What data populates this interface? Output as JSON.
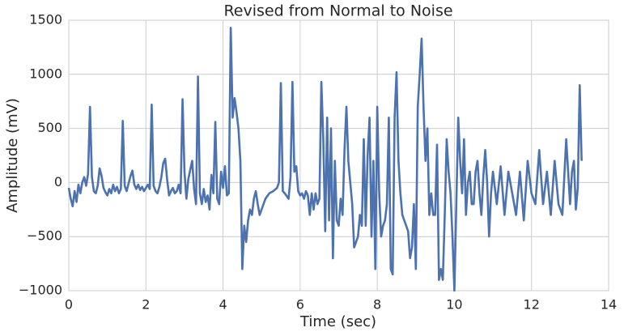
{
  "chart_data": {
    "type": "line",
    "title": "Revised from Normal to Noise",
    "x_label": "Time (sec)",
    "y_label": "Amplitude (mV)",
    "xlim": [
      0,
      14
    ],
    "ylim": [
      -1000,
      1500
    ],
    "xticks": [
      0,
      2,
      4,
      6,
      8,
      10,
      12,
      14
    ],
    "yticks": [
      {
        "value": -1000,
        "label": "−1000"
      },
      {
        "value": -500,
        "label": "−500"
      },
      0,
      500,
      1000,
      1500
    ],
    "grid": true,
    "series": [
      {
        "color": "#4c72b0",
        "x": [
          0,
          0.05,
          0.1,
          0.15,
          0.2,
          0.25,
          0.3,
          0.35,
          0.4,
          0.45,
          0.5,
          0.55,
          0.6,
          0.65,
          0.7,
          0.75,
          0.8,
          0.85,
          0.9,
          0.95,
          1,
          1.05,
          1.1,
          1.15,
          1.2,
          1.25,
          1.3,
          1.35,
          1.4,
          1.45,
          1.5,
          1.55,
          1.6,
          1.65,
          1.7,
          1.75,
          1.8,
          1.85,
          1.9,
          1.95,
          2,
          2.05,
          2.1,
          2.15,
          2.2,
          2.25,
          2.3,
          2.35,
          2.4,
          2.45,
          2.5,
          2.55,
          2.6,
          2.65,
          2.7,
          2.75,
          2.8,
          2.85,
          2.9,
          2.95,
          3,
          3.05,
          3.1,
          3.15,
          3.2,
          3.25,
          3.3,
          3.35,
          3.4,
          3.45,
          3.5,
          3.55,
          3.6,
          3.65,
          3.7,
          3.75,
          3.8,
          3.85,
          3.9,
          3.95,
          4,
          4.05,
          4.1,
          4.15,
          4.2,
          4.25,
          4.3,
          4.35,
          4.4,
          4.45,
          4.5,
          4.55,
          4.6,
          4.65,
          4.7,
          4.75,
          4.8,
          4.85,
          4.9,
          4.95,
          5,
          5.1,
          5.2,
          5.3,
          5.4,
          5.45,
          5.5,
          5.55,
          5.6,
          5.7,
          5.75,
          5.8,
          5.85,
          5.9,
          5.95,
          6,
          6.05,
          6.1,
          6.15,
          6.2,
          6.25,
          6.3,
          6.35,
          6.4,
          6.45,
          6.5,
          6.55,
          6.6,
          6.65,
          6.7,
          6.75,
          6.8,
          6.85,
          6.9,
          6.95,
          7,
          7.05,
          7.1,
          7.15,
          7.2,
          7.25,
          7.3,
          7.35,
          7.4,
          7.45,
          7.5,
          7.55,
          7.6,
          7.65,
          7.7,
          7.75,
          7.8,
          7.85,
          7.9,
          7.95,
          8,
          8.05,
          8.1,
          8.15,
          8.2,
          8.25,
          8.3,
          8.35,
          8.4,
          8.45,
          8.5,
          8.55,
          8.6,
          8.65,
          8.7,
          8.75,
          8.8,
          8.85,
          8.9,
          8.95,
          9,
          9.05,
          9.1,
          9.15,
          9.2,
          9.25,
          9.3,
          9.35,
          9.4,
          9.45,
          9.5,
          9.55,
          9.6,
          9.65,
          9.7,
          9.75,
          9.8,
          9.85,
          9.9,
          9.95,
          10,
          10.05,
          10.1,
          10.15,
          10.2,
          10.25,
          10.3,
          10.35,
          10.4,
          10.45,
          10.5,
          10.55,
          10.6,
          10.65,
          10.7,
          10.75,
          10.8,
          10.85,
          10.9,
          10.95,
          11,
          11.1,
          11.2,
          11.3,
          11.4,
          11.5,
          11.6,
          11.7,
          11.8,
          11.9,
          12,
          12.1,
          12.2,
          12.3,
          12.4,
          12.5,
          12.6,
          12.7,
          12.8,
          12.9,
          13,
          13.05,
          13.1,
          13.15,
          13.2,
          13.25,
          13.3
        ],
        "values": [
          -50,
          -150,
          -220,
          -80,
          -180,
          -20,
          -100,
          0,
          50,
          -30,
          80,
          700,
          50,
          -80,
          -100,
          -30,
          130,
          60,
          -50,
          -90,
          -120,
          -60,
          -100,
          -20,
          -80,
          -40,
          -100,
          -60,
          570,
          -30,
          -80,
          -10,
          60,
          110,
          -20,
          -60,
          -20,
          -70,
          -40,
          -80,
          -50,
          -20,
          -60,
          720,
          -30,
          -80,
          -100,
          -40,
          50,
          180,
          220,
          30,
          -120,
          -80,
          -50,
          -100,
          -80,
          -20,
          -100,
          770,
          100,
          -150,
          30,
          120,
          200,
          -60,
          -200,
          980,
          -100,
          -200,
          -60,
          -180,
          -120,
          -250,
          70,
          -100,
          560,
          -150,
          -200,
          100,
          -50,
          150,
          -120,
          -100,
          1430,
          600,
          780,
          650,
          500,
          200,
          -800,
          -400,
          -550,
          -350,
          -250,
          -300,
          -150,
          -80,
          -200,
          -300,
          -250,
          -150,
          -100,
          -80,
          -50,
          0,
          920,
          -80,
          -100,
          -150,
          50,
          930,
          100,
          150,
          -80,
          -120,
          -100,
          -150,
          -80,
          -120,
          -300,
          -100,
          -250,
          -100,
          -200,
          -150,
          930,
          400,
          -450,
          600,
          -350,
          500,
          -700,
          200,
          -350,
          -400,
          -150,
          -300,
          300,
          700,
          200,
          0,
          -200,
          -600,
          -550,
          -500,
          -300,
          -400,
          400,
          -400,
          250,
          600,
          -500,
          200,
          -800,
          700,
          -100,
          -500,
          -400,
          -350,
          -200,
          600,
          -800,
          -850,
          600,
          1020,
          200,
          -100,
          -300,
          -350,
          -400,
          -450,
          -700,
          -600,
          -200,
          -800,
          700,
          1000,
          1330,
          700,
          200,
          500,
          -300,
          -100,
          -300,
          -300,
          350,
          -900,
          -800,
          -900,
          -300,
          400,
          100,
          -100,
          -500,
          -1000,
          -200,
          600,
          200,
          -100,
          400,
          -300,
          0,
          100,
          -200,
          -200,
          100,
          200,
          -100,
          -300,
          50,
          300,
          0,
          -500,
          -100,
          100,
          -200,
          150,
          -300,
          100,
          -100,
          -300,
          100,
          -350,
          200,
          -100,
          -200,
          300,
          -200,
          100,
          -300,
          200,
          -200,
          -300,
          400,
          -200,
          100,
          200,
          -250,
          -50,
          900,
          200
        ]
      }
    ]
  }
}
